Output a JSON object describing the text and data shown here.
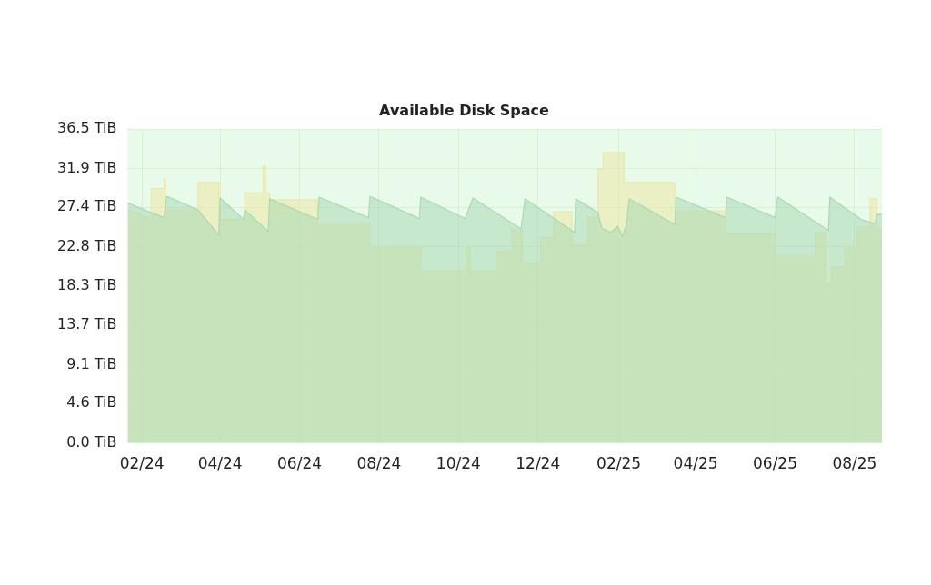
{
  "chart_data": {
    "type": "area",
    "title": "Available Disk Space",
    "xlim": [
      "2024-01-21",
      "2025-08-22"
    ],
    "xticks": [
      {
        "value": "2024-02-01",
        "label": "02/24"
      },
      {
        "value": "2024-04-01",
        "label": "04/24"
      },
      {
        "value": "2024-06-01",
        "label": "06/24"
      },
      {
        "value": "2024-08-01",
        "label": "08/24"
      },
      {
        "value": "2024-10-01",
        "label": "10/24"
      },
      {
        "value": "2024-12-01",
        "label": "12/24"
      },
      {
        "value": "2025-02-01",
        "label": "02/25"
      },
      {
        "value": "2025-04-01",
        "label": "04/25"
      },
      {
        "value": "2025-06-01",
        "label": "06/25"
      },
      {
        "value": "2025-08-01",
        "label": "08/25"
      }
    ],
    "ylim": [
      0,
      36.5
    ],
    "yticks": [
      {
        "value": 0,
        "label": "0.0 TiB"
      },
      {
        "value": 4.6,
        "label": "4.6 TiB"
      },
      {
        "value": 9.1,
        "label": "9.1 TiB"
      },
      {
        "value": 13.7,
        "label": "13.7 TiB"
      },
      {
        "value": 18.3,
        "label": "18.3 TiB"
      },
      {
        "value": 22.8,
        "label": "22.8 TiB"
      },
      {
        "value": 27.4,
        "label": "27.4 TiB"
      },
      {
        "value": 31.9,
        "label": "31.9 TiB"
      },
      {
        "value": 36.5,
        "label": "36.5 TiB"
      }
    ],
    "grid": true,
    "legend": false,
    "series": [
      {
        "color": "#a9d9b4",
        "x": [
          "2024-01-21",
          "2024-02-18",
          "2024-02-20",
          "2024-03-15",
          "2024-03-31",
          "2024-04-01",
          "2024-04-19",
          "2024-04-20",
          "2024-05-08",
          "2024-05-09",
          "2024-06-15",
          "2024-06-16",
          "2024-07-24",
          "2024-07-25",
          "2024-09-01",
          "2024-09-02",
          "2024-10-06",
          "2024-10-12",
          "2024-11-18",
          "2024-11-21",
          "2024-12-29",
          "2024-12-30",
          "2025-01-16",
          "2025-01-19",
          "2025-01-26",
          "2025-01-31",
          "2025-02-04",
          "2025-02-07",
          "2025-02-09",
          "2025-03-16",
          "2025-03-17",
          "2025-04-24",
          "2025-04-25",
          "2025-06-01",
          "2025-06-03",
          "2025-07-12",
          "2025-07-13",
          "2025-08-06",
          "2025-08-17",
          "2025-08-18",
          "2025-08-22"
        ],
        "values": [
          27.9,
          26.2,
          28.7,
          27.1,
          24.2,
          28.5,
          26.0,
          27.1,
          24.6,
          28.4,
          26.0,
          28.6,
          26.2,
          28.7,
          26.1,
          28.6,
          26.1,
          28.5,
          24.9,
          28.4,
          24.5,
          28.4,
          26.8,
          25.0,
          24.5,
          25.2,
          24.0,
          25.5,
          28.4,
          25.4,
          28.6,
          26.2,
          28.6,
          26.2,
          28.6,
          24.7,
          28.6,
          26.0,
          25.5,
          26.6,
          26.6
        ]
      },
      {
        "color": "#ebe7a4",
        "x": [
          "2024-01-21",
          "2024-02-08",
          "2024-02-08",
          "2024-02-18",
          "2024-02-18",
          "2024-02-19",
          "2024-02-19",
          "2024-03-15",
          "2024-03-15",
          "2024-03-31",
          "2024-03-31",
          "2024-04-20",
          "2024-04-20",
          "2024-05-04",
          "2024-05-04",
          "2024-05-06",
          "2024-05-06",
          "2024-05-09",
          "2024-05-09",
          "2024-06-15",
          "2024-06-15",
          "2024-07-25",
          "2024-07-25",
          "2024-09-02",
          "2024-09-02",
          "2024-10-07",
          "2024-10-07",
          "2024-10-10",
          "2024-10-10",
          "2024-10-30",
          "2024-10-30",
          "2024-11-11",
          "2024-11-11",
          "2024-11-19",
          "2024-11-19",
          "2024-12-03",
          "2024-12-03",
          "2024-12-13",
          "2024-12-13",
          "2024-12-27",
          "2024-12-27",
          "2025-01-08",
          "2025-01-08",
          "2025-01-16",
          "2025-01-16",
          "2025-01-20",
          "2025-01-20",
          "2025-02-05",
          "2025-02-05",
          "2025-03-16",
          "2025-03-16",
          "2025-04-24",
          "2025-04-24",
          "2025-06-01",
          "2025-06-01",
          "2025-07-02",
          "2025-07-02",
          "2025-07-10",
          "2025-07-10",
          "2025-07-14",
          "2025-07-14",
          "2025-07-25",
          "2025-07-25",
          "2025-08-03",
          "2025-08-03",
          "2025-08-13",
          "2025-08-13",
          "2025-08-18",
          "2025-08-18",
          "2025-08-22"
        ],
        "values": [
          27.1,
          26.1,
          29.6,
          29.6,
          30.7,
          30.7,
          27.1,
          27.1,
          30.3,
          30.3,
          26.0,
          26.0,
          29.1,
          29.1,
          32.2,
          32.2,
          29.1,
          29.1,
          28.3,
          28.3,
          25.4,
          25.4,
          22.7,
          22.7,
          20.0,
          20.0,
          22.7,
          22.7,
          20.0,
          20.0,
          22.3,
          22.3,
          24.8,
          24.8,
          20.9,
          20.9,
          23.9,
          23.9,
          26.9,
          26.9,
          23.0,
          23.0,
          26.2,
          26.2,
          31.8,
          31.8,
          33.8,
          33.8,
          30.3,
          30.3,
          27.0,
          27.0,
          24.3,
          24.3,
          21.7,
          21.7,
          24.5,
          24.5,
          18.5,
          18.5,
          20.5,
          20.5,
          22.8,
          22.8,
          25.1,
          25.1,
          28.4,
          28.4,
          24.9,
          24.9
        ]
      }
    ]
  }
}
